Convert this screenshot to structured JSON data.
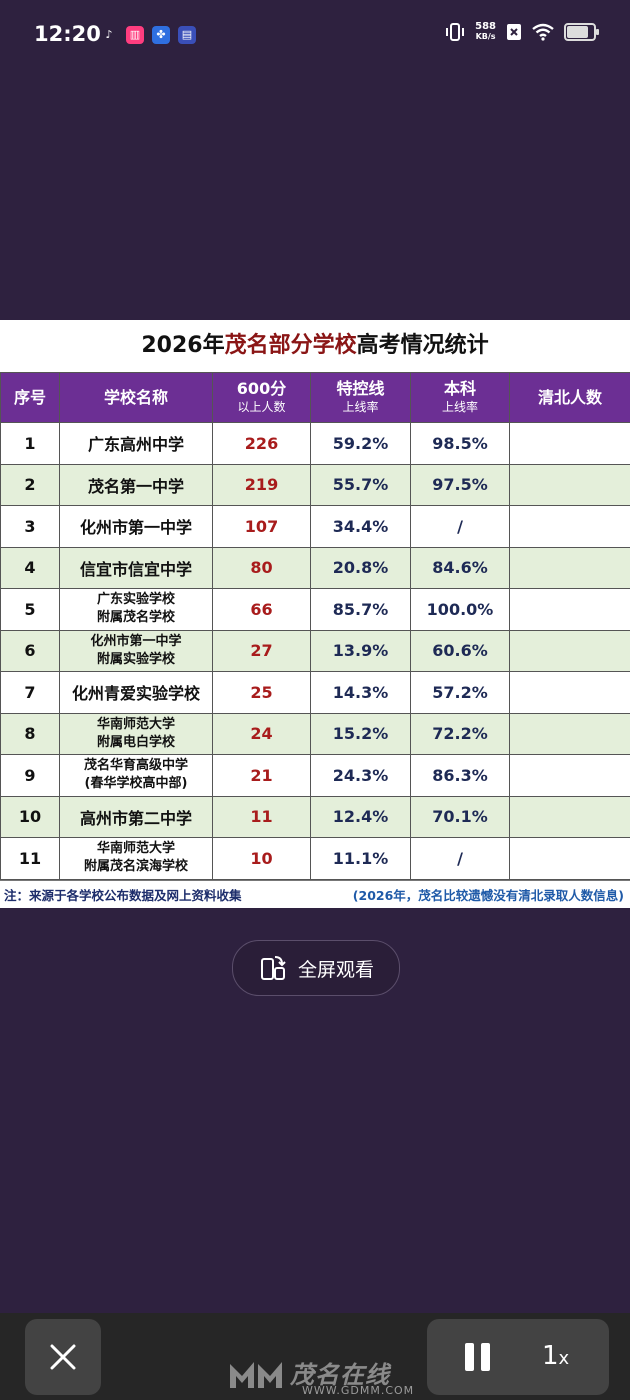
{
  "status": {
    "time": "12:20",
    "net_speed_value": "588",
    "net_speed_unit": "KB/s",
    "battery_level": 0.75,
    "app_icons": [
      "tiktok-icon",
      "chart-app-icon",
      "paw-app-icon",
      "clipboard-app-icon"
    ]
  },
  "card": {
    "title_prefix": "2026年",
    "title_highlight": "茂名部分学校",
    "title_suffix": "高考情况统计",
    "headers": {
      "index": "序号",
      "school": "学校名称",
      "c600_main": "600分",
      "c600_sub": "以上人数",
      "special_main": "特控线",
      "special_sub": "上线率",
      "bachelor_main": "本科",
      "bachelor_sub": "上线率",
      "qingbei": "清北人数"
    },
    "rows": [
      {
        "idx": "1",
        "school": "广东高州中学",
        "school2": "",
        "c600": "226",
        "special": "59.2%",
        "bachelor": "98.5%",
        "qingbei": ""
      },
      {
        "idx": "2",
        "school": "茂名第一中学",
        "school2": "",
        "c600": "219",
        "special": "55.7%",
        "bachelor": "97.5%",
        "qingbei": ""
      },
      {
        "idx": "3",
        "school": "化州市第一中学",
        "school2": "",
        "c600": "107",
        "special": "34.4%",
        "bachelor": "/",
        "qingbei": ""
      },
      {
        "idx": "4",
        "school": "信宜市信宜中学",
        "school2": "",
        "c600": "80",
        "special": "20.8%",
        "bachelor": "84.6%",
        "qingbei": ""
      },
      {
        "idx": "5",
        "school": "广东实验学校",
        "school2": "附属茂名学校",
        "c600": "66",
        "special": "85.7%",
        "bachelor": "100.0%",
        "qingbei": ""
      },
      {
        "idx": "6",
        "school": "化州市第一中学",
        "school2": "附属实验学校",
        "c600": "27",
        "special": "13.9%",
        "bachelor": "60.6%",
        "qingbei": ""
      },
      {
        "idx": "7",
        "school": "化州青爱实验学校",
        "school2": "",
        "c600": "25",
        "special": "14.3%",
        "bachelor": "57.2%",
        "qingbei": ""
      },
      {
        "idx": "8",
        "school": "华南师范大学",
        "school2": "附属电白学校",
        "c600": "24",
        "special": "15.2%",
        "bachelor": "72.2%",
        "qingbei": ""
      },
      {
        "idx": "9",
        "school": "茂名华育高级中学",
        "school2": "(春华学校高中部)",
        "c600": "21",
        "special": "24.3%",
        "bachelor": "86.3%",
        "qingbei": ""
      },
      {
        "idx": "10",
        "school": "高州市第二中学",
        "school2": "",
        "c600": "11",
        "special": "12.4%",
        "bachelor": "70.1%",
        "qingbei": ""
      },
      {
        "idx": "11",
        "school": "华南师范大学",
        "school2": "附属茂名滨海学校",
        "c600": "10",
        "special": "11.1%",
        "bachelor": "/",
        "qingbei": ""
      }
    ],
    "note_left": "注：来源于各学校公布数据及网上资料收集",
    "note_right": "(2026年，茂名比较遗憾没有清北录取人数信息)"
  },
  "fullscreen_label": "全屏观看",
  "player": {
    "speed_value": "1",
    "speed_suffix": "x"
  },
  "watermark": {
    "name": "茂名在线",
    "url": "WWW.GDMM.COM"
  }
}
